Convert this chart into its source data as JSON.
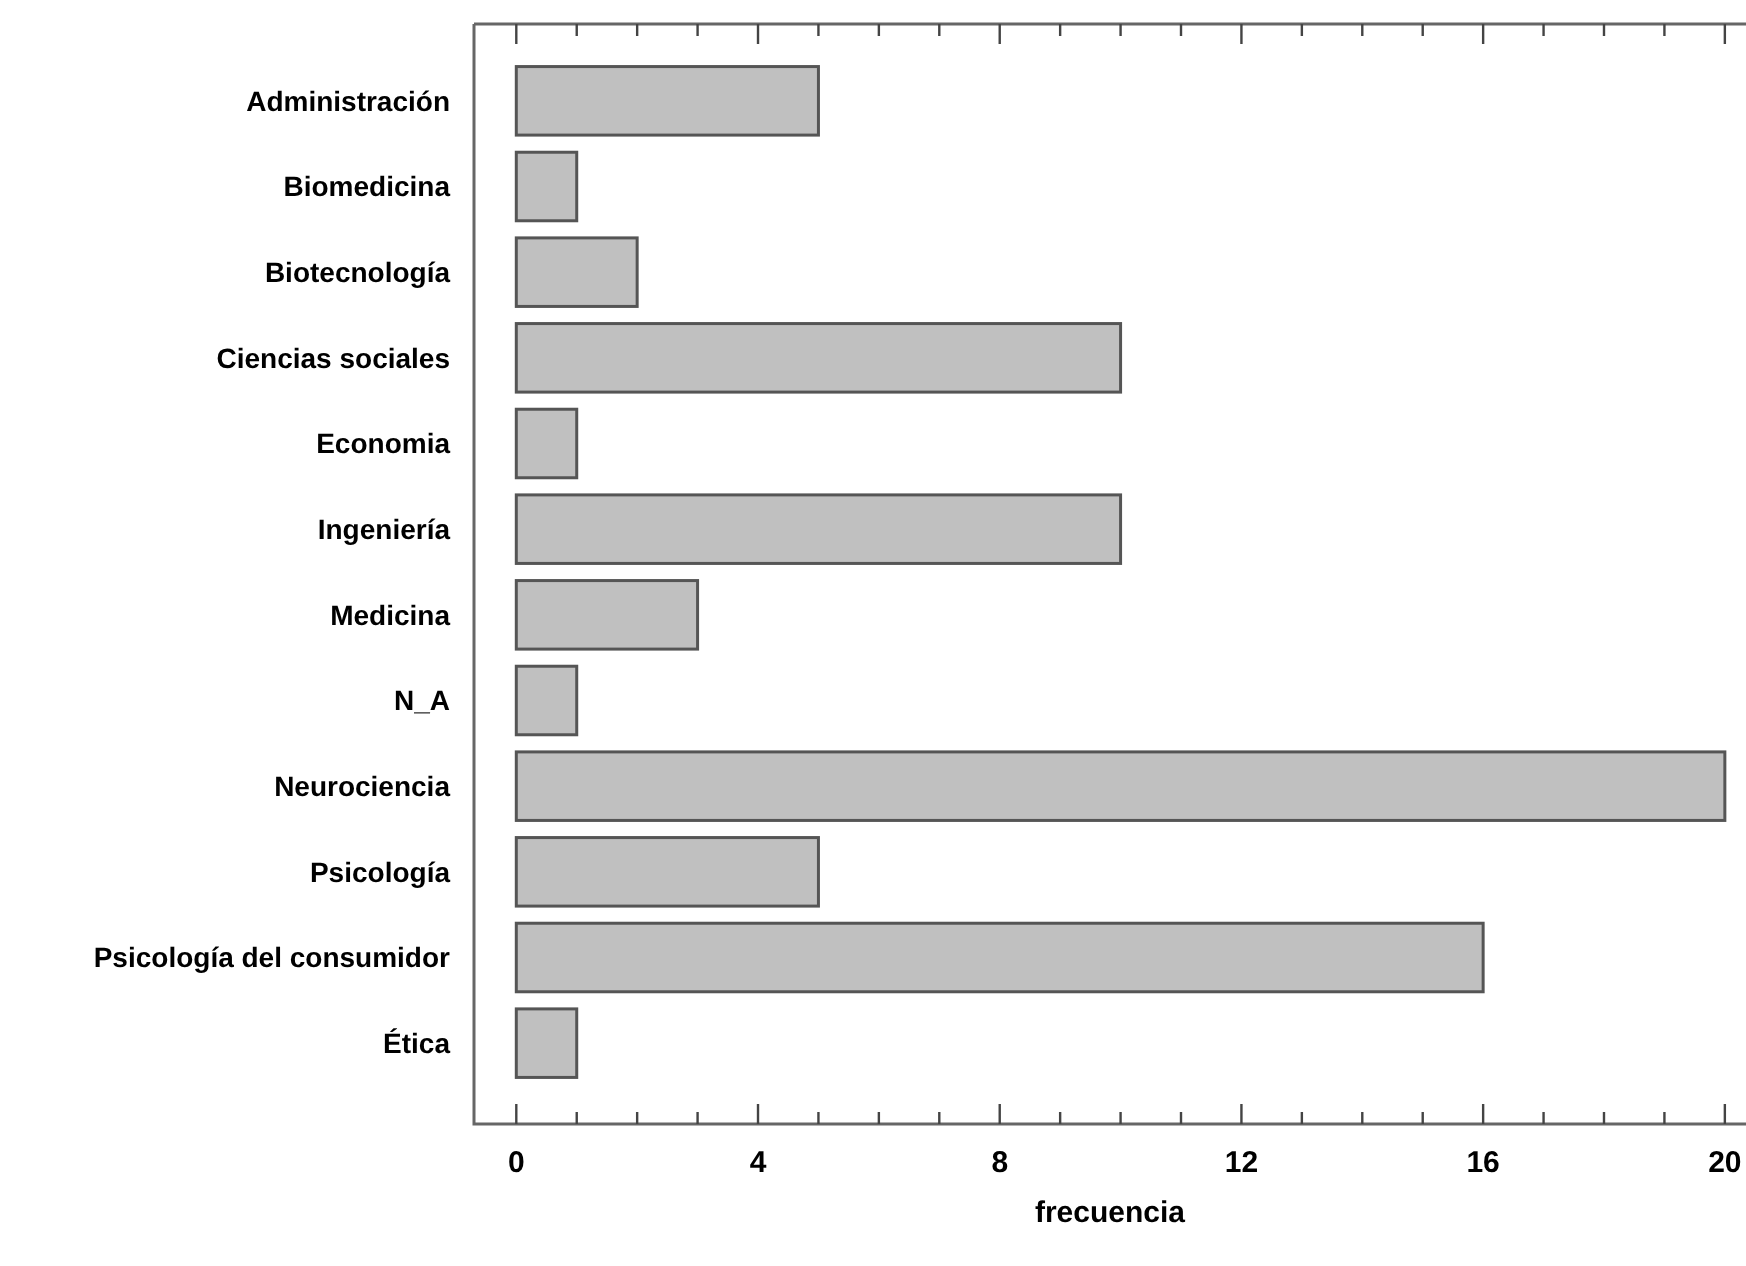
{
  "chart_data": {
    "type": "bar",
    "orientation": "horizontal",
    "xlabel": "frecuencia",
    "categories": [
      "Administración",
      "Biomedicina",
      "Biotecnología",
      "Ciencias sociales",
      "Economia",
      "Ingeniería",
      "Medicina",
      "N_A",
      "Neurociencia",
      "Psicología",
      "Psicología del consumidor",
      "Ética"
    ],
    "values": [
      5,
      1,
      2,
      10,
      1,
      10,
      3,
      1,
      20,
      5,
      16,
      1
    ],
    "color": "#c0c0c0",
    "xlim": [
      -0.7,
      20.35
    ],
    "xticks": [
      0,
      {
        "value": 1,
        "label": null
      },
      {
        "value": 2,
        "label": null
      },
      {
        "value": 3,
        "label": null
      },
      4,
      {
        "value": 5,
        "label": null
      },
      {
        "value": 6,
        "label": null
      },
      {
        "value": 7,
        "label": null
      },
      8,
      {
        "value": 9,
        "label": null
      },
      {
        "value": 10,
        "label": null
      },
      {
        "value": 11,
        "label": null
      },
      12,
      {
        "value": 13,
        "label": null
      },
      {
        "value": 14,
        "label": null
      },
      {
        "value": 15,
        "label": null
      },
      16,
      {
        "value": 17,
        "label": null
      },
      {
        "value": 18,
        "label": null
      },
      {
        "value": 19,
        "label": null
      },
      20
    ],
    "grid": false
  }
}
